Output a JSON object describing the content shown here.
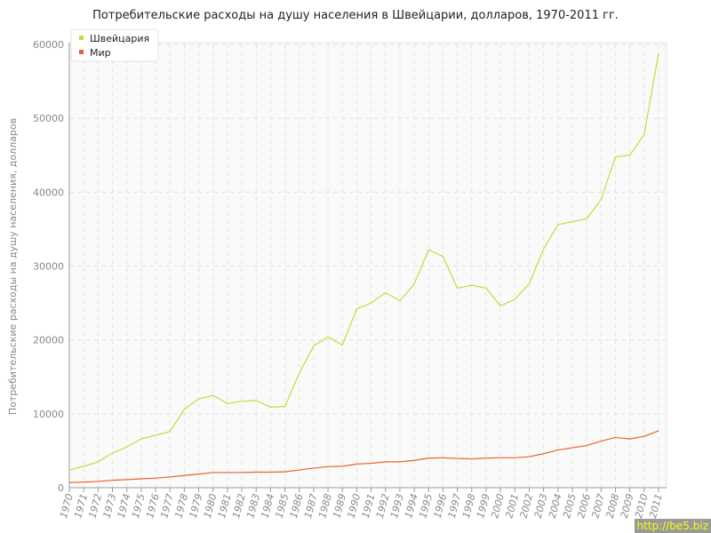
{
  "chart_data": {
    "type": "line",
    "title": "Потребительские расходы на душу населения в Швейцарии, долларов, 1970-2011 гг.",
    "xlabel": "",
    "ylabel": "Потребительские расходы на душу населения, долларов",
    "ylim": [
      0,
      60000
    ],
    "yticks": [
      0,
      10000,
      20000,
      30000,
      40000,
      50000,
      60000
    ],
    "grid": true,
    "legend": "top-left",
    "x": [
      1970,
      1971,
      1972,
      1973,
      1974,
      1975,
      1976,
      1977,
      1978,
      1979,
      1980,
      1981,
      1982,
      1983,
      1984,
      1985,
      1986,
      1987,
      1988,
      1989,
      1990,
      1991,
      1992,
      1993,
      1994,
      1995,
      1996,
      1997,
      1998,
      1999,
      2000,
      2001,
      2002,
      2003,
      2004,
      2005,
      2006,
      2007,
      2008,
      2009,
      2010,
      2011
    ],
    "series": [
      {
        "name": "Швейцария",
        "color": "#c4dd3c",
        "values": [
          2400,
          2900,
          3500,
          4700,
          5500,
          6600,
          7100,
          7600,
          10600,
          12000,
          12500,
          11400,
          11700,
          11800,
          10900,
          11000,
          15500,
          19200,
          20400,
          19300,
          24200,
          25000,
          26400,
          25300,
          27600,
          32200,
          31300,
          27000,
          27400,
          27000,
          24600,
          25500,
          27600,
          32300,
          35600,
          36000,
          36400,
          39000,
          44800,
          45000,
          47800,
          58800
        ]
      },
      {
        "name": "Мир",
        "color": "#e8632c",
        "values": [
          700,
          750,
          850,
          1000,
          1100,
          1200,
          1300,
          1450,
          1650,
          1850,
          2050,
          2050,
          2050,
          2100,
          2100,
          2150,
          2400,
          2650,
          2850,
          2900,
          3200,
          3300,
          3500,
          3500,
          3700,
          4000,
          4050,
          3950,
          3900,
          4000,
          4050,
          4050,
          4200,
          4600,
          5100,
          5400,
          5700,
          6300,
          6800,
          6600,
          6950,
          7700
        ]
      }
    ]
  },
  "watermark": "http://be5.biz"
}
